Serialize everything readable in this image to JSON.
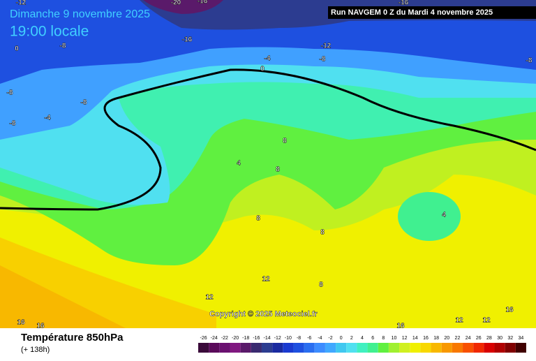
{
  "header": {
    "date": "Dimanche 9 novembre 2025",
    "time": "19:00 locale",
    "run": "Run NAVGEM 0 Z du Mardi 4 novembre 2025"
  },
  "copyright": "Copyright © 2025 Meteociel.fr",
  "footer": {
    "title": "Température 850hPa",
    "subtitle": "(+ 138h)"
  },
  "legend": [
    {
      "label": "-26",
      "color": "#3a0a3a"
    },
    {
      "label": "-24",
      "color": "#5a0a5a"
    },
    {
      "label": "-22",
      "color": "#6a1070"
    },
    {
      "label": "-20",
      "color": "#801880"
    },
    {
      "label": "-18",
      "color": "#5a1a6a"
    },
    {
      "label": "-16",
      "color": "#3a2a70"
    },
    {
      "label": "-14",
      "color": "#2c3c90"
    },
    {
      "label": "-12",
      "color": "#1a2aa0"
    },
    {
      "label": "-10",
      "color": "#1a3ad0"
    },
    {
      "label": "-8",
      "color": "#1e50e0"
    },
    {
      "label": "-6",
      "color": "#2a6ef0"
    },
    {
      "label": "-4",
      "color": "#3c8cff"
    },
    {
      "label": "-2",
      "color": "#40a8ff"
    },
    {
      "label": "0",
      "color": "#40c8f0"
    },
    {
      "label": "2",
      "color": "#50e0f0"
    },
    {
      "label": "4",
      "color": "#40f0c0"
    },
    {
      "label": "6",
      "color": "#40f090"
    },
    {
      "label": "8",
      "color": "#60f040"
    },
    {
      "label": "10",
      "color": "#a0f030"
    },
    {
      "label": "12",
      "color": "#d0f020"
    },
    {
      "label": "14",
      "color": "#f0f000"
    },
    {
      "label": "16",
      "color": "#f8d800"
    },
    {
      "label": "18",
      "color": "#f8b800"
    },
    {
      "label": "20",
      "color": "#f89800"
    },
    {
      "label": "22",
      "color": "#f87800"
    },
    {
      "label": "24",
      "color": "#f85000"
    },
    {
      "label": "26",
      "color": "#f02800"
    },
    {
      "label": "28",
      "color": "#d80000"
    },
    {
      "label": "30",
      "color": "#b00000"
    },
    {
      "label": "32",
      "color": "#800000"
    },
    {
      "label": "34",
      "color": "#400000"
    }
  ],
  "contour_labels": [
    "-12",
    "-20",
    "-16",
    "-16",
    "0",
    "-8",
    "-16",
    "-12",
    "-4",
    "-8",
    "0",
    "-8",
    "-8",
    "-8",
    "-4",
    "-8",
    "4",
    "8",
    "8",
    "8",
    "8",
    "4",
    "12",
    "8",
    "12",
    "16",
    "16",
    "16",
    "12",
    "12",
    "16"
  ]
}
